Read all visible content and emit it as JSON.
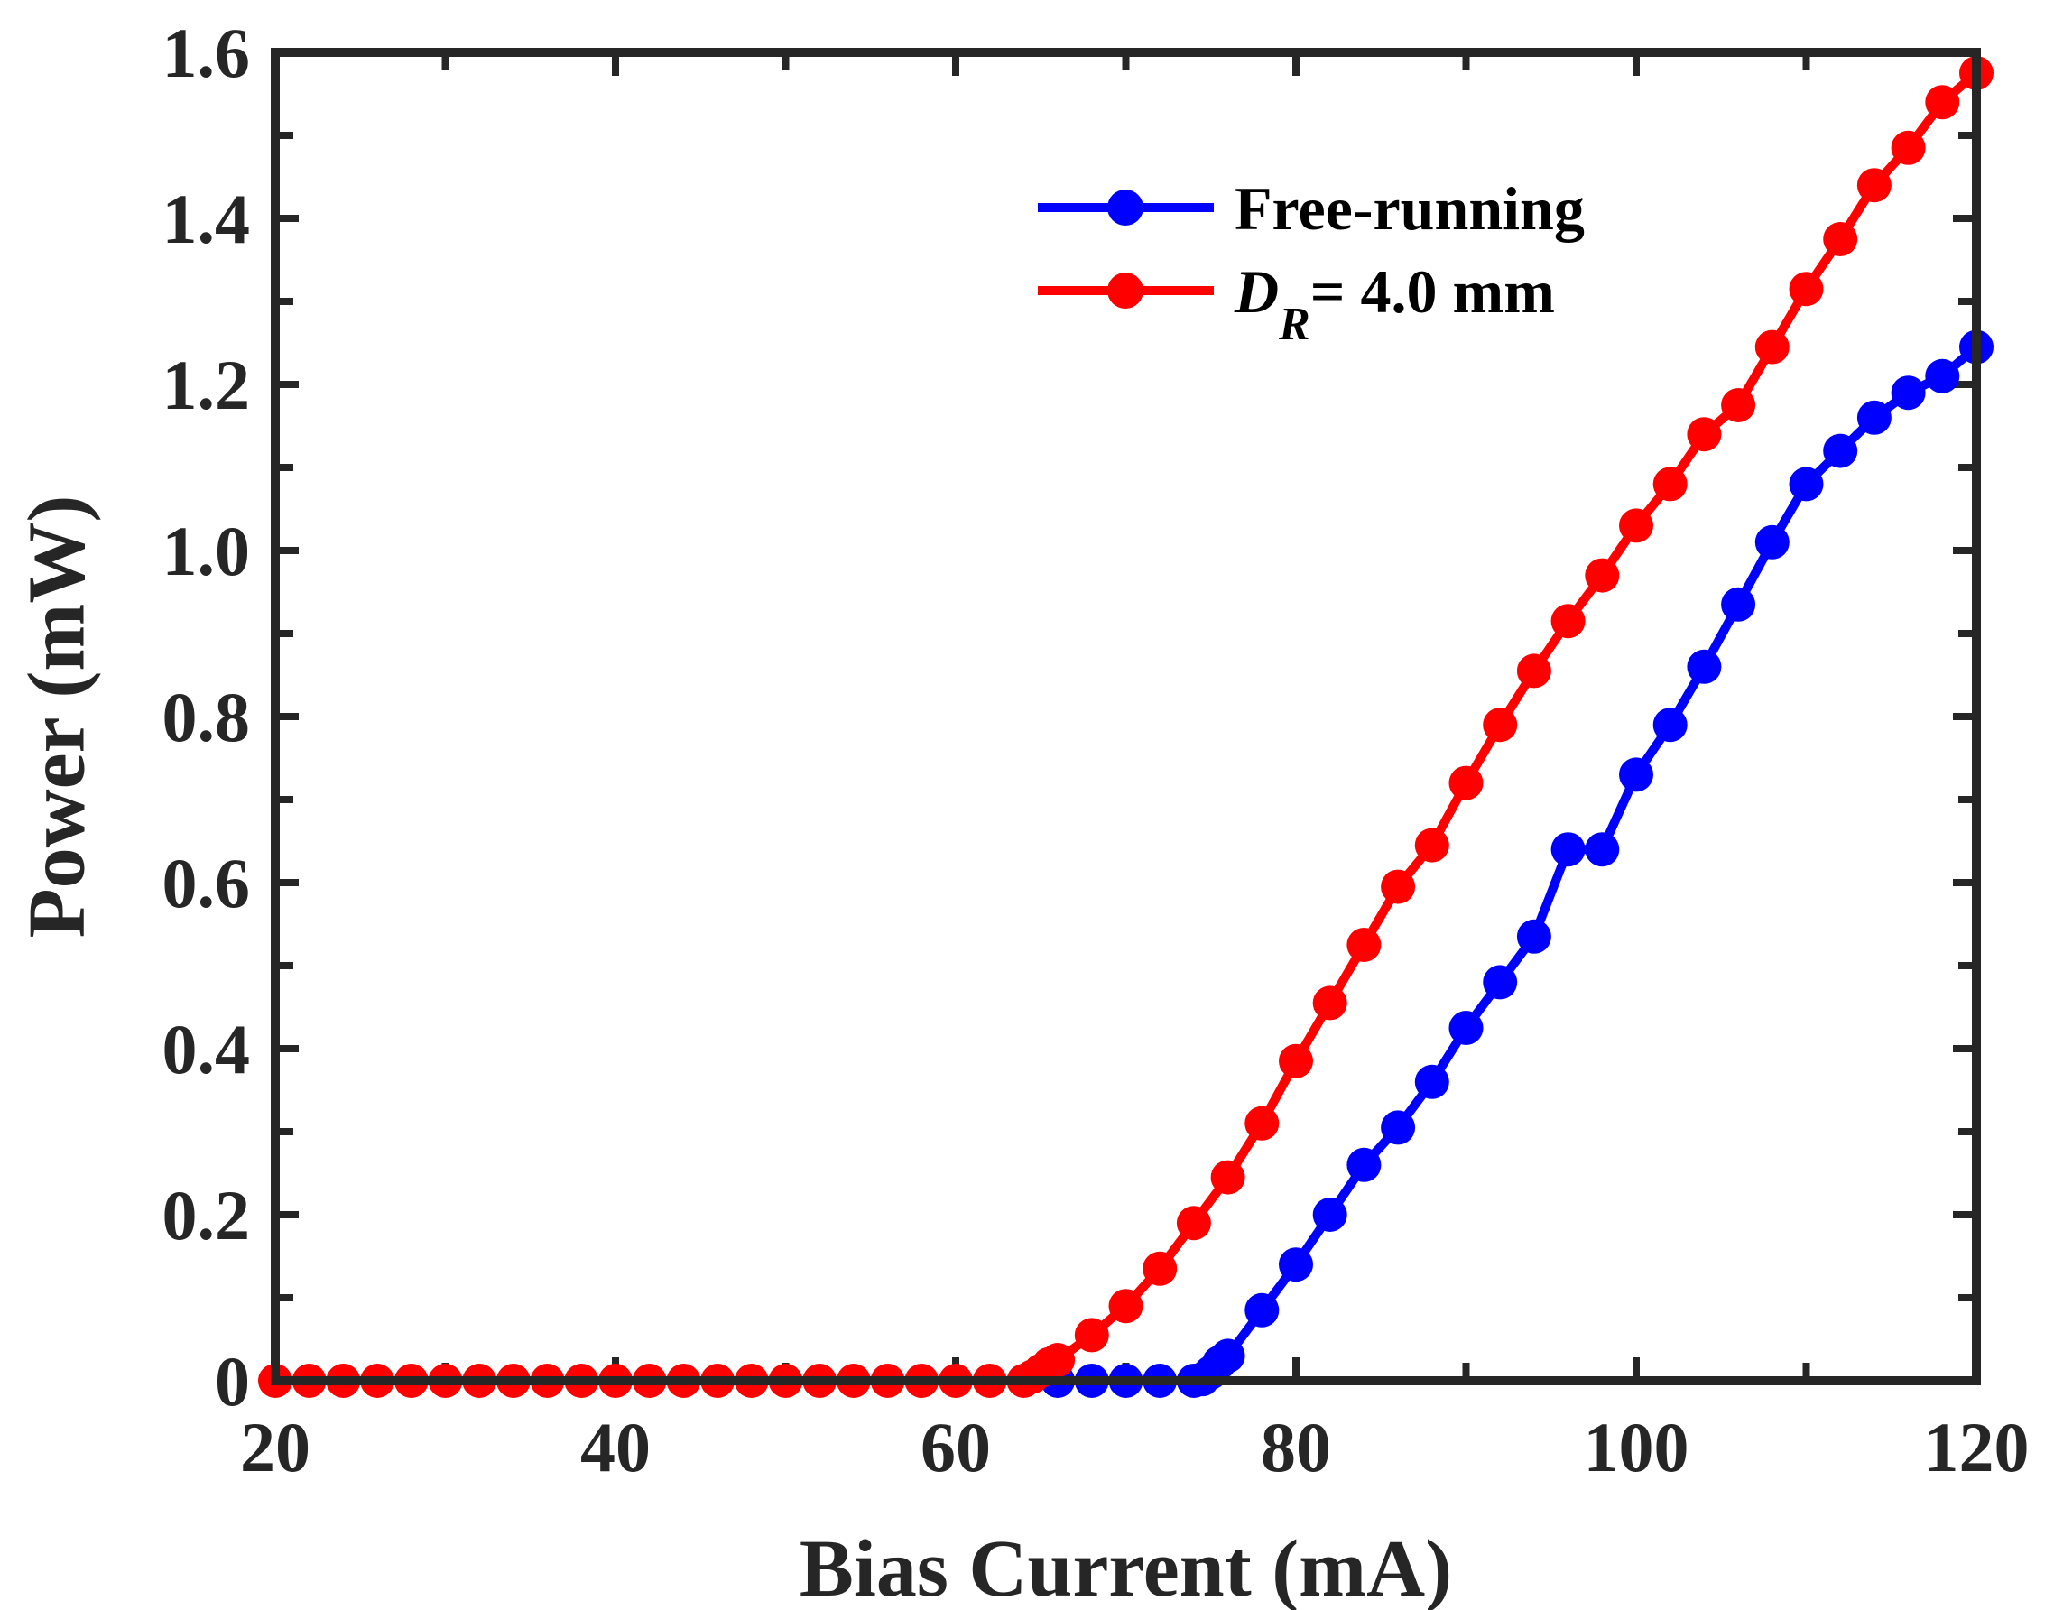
{
  "chart_data": {
    "type": "line",
    "title": "",
    "xlabel": "Bias Current (mA)",
    "ylabel": "Power (mW)",
    "xlim": [
      20,
      120
    ],
    "ylim": [
      0,
      1.6
    ],
    "xticks": [
      20,
      40,
      60,
      80,
      100,
      120
    ],
    "xtick_labels": [
      "20",
      "40",
      "60",
      "80",
      "100",
      "120"
    ],
    "yticks": [
      0,
      0.2,
      0.4,
      0.6,
      0.8,
      1.0,
      1.2,
      1.4,
      1.6
    ],
    "ytick_labels": [
      "0",
      "0.2",
      "0.4",
      "0.6",
      "0.8",
      "1.0",
      "1.2",
      "1.4",
      "1.6"
    ],
    "grid": false,
    "legend_position": "top-right",
    "series": [
      {
        "name": "Free-running",
        "color": "#0000ff",
        "marker": "circle",
        "points": [
          [
            66,
            0
          ],
          [
            68,
            0
          ],
          [
            70,
            0
          ],
          [
            72,
            0
          ],
          [
            74,
            0
          ],
          [
            74.5,
            0.002
          ],
          [
            75,
            0.01
          ],
          [
            75.5,
            0.022
          ],
          [
            76,
            0.03
          ],
          [
            78,
            0.085
          ],
          [
            80,
            0.14
          ],
          [
            82,
            0.2
          ],
          [
            84,
            0.26
          ],
          [
            86,
            0.305
          ],
          [
            88,
            0.36
          ],
          [
            90,
            0.425
          ],
          [
            92,
            0.48
          ],
          [
            94,
            0.535
          ],
          [
            96,
            0.64
          ],
          [
            98,
            0.64
          ],
          [
            100,
            0.73
          ],
          [
            102,
            0.79
          ],
          [
            104,
            0.86
          ],
          [
            106,
            0.935
          ],
          [
            108,
            1.01
          ],
          [
            110,
            1.08
          ],
          [
            112,
            1.12
          ],
          [
            114,
            1.16
          ],
          [
            116,
            1.19
          ],
          [
            118,
            1.21
          ],
          [
            120,
            1.245
          ]
        ]
      },
      {
        "name": "D_R = 4.0 mm",
        "label_italic_main": "D",
        "label_italic_sub": "R",
        "label_rest": "= 4.0 mm",
        "color": "#ff0000",
        "marker": "circle",
        "points": [
          [
            20,
            0
          ],
          [
            22,
            0
          ],
          [
            24,
            0
          ],
          [
            26,
            0
          ],
          [
            28,
            0
          ],
          [
            30,
            0
          ],
          [
            32,
            0
          ],
          [
            34,
            0
          ],
          [
            36,
            0
          ],
          [
            38,
            0
          ],
          [
            40,
            0
          ],
          [
            42,
            0
          ],
          [
            44,
            0
          ],
          [
            46,
            0
          ],
          [
            48,
            0
          ],
          [
            50,
            0
          ],
          [
            52,
            0
          ],
          [
            54,
            0
          ],
          [
            56,
            0
          ],
          [
            58,
            0
          ],
          [
            60,
            0
          ],
          [
            62,
            0
          ],
          [
            64,
            0
          ],
          [
            64.5,
            0.005
          ],
          [
            65,
            0.012
          ],
          [
            65.5,
            0.02
          ],
          [
            66,
            0.025
          ],
          [
            68,
            0.055
          ],
          [
            70,
            0.09
          ],
          [
            72,
            0.135
          ],
          [
            74,
            0.19
          ],
          [
            76,
            0.245
          ],
          [
            78,
            0.31
          ],
          [
            80,
            0.385
          ],
          [
            82,
            0.455
          ],
          [
            84,
            0.525
          ],
          [
            86,
            0.595
          ],
          [
            88,
            0.645
          ],
          [
            90,
            0.72
          ],
          [
            92,
            0.79
          ],
          [
            94,
            0.855
          ],
          [
            96,
            0.915
          ],
          [
            98,
            0.97
          ],
          [
            100,
            1.03
          ],
          [
            102,
            1.08
          ],
          [
            104,
            1.14
          ],
          [
            106,
            1.175
          ],
          [
            108,
            1.245
          ],
          [
            110,
            1.315
          ],
          [
            112,
            1.375
          ],
          [
            114,
            1.44
          ],
          [
            116,
            1.485
          ],
          [
            118,
            1.54
          ],
          [
            120,
            1.575
          ]
        ]
      }
    ]
  }
}
